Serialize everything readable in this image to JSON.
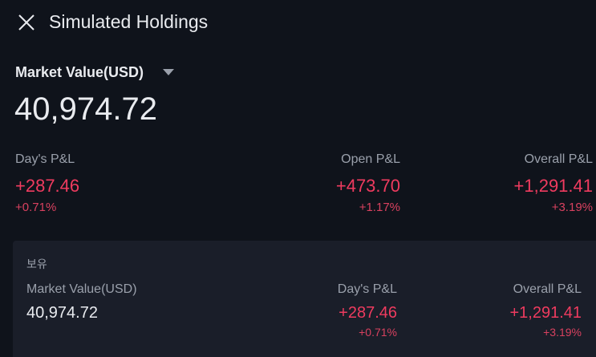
{
  "header": {
    "title": "Simulated Holdings"
  },
  "summary": {
    "label": "Market Value(USD)",
    "value": "40,974.72",
    "metrics": [
      {
        "label": "Day's P&L",
        "value": "+287.46",
        "percent": "+0.71%"
      },
      {
        "label": "Open P&L",
        "value": "+473.70",
        "percent": "+1.17%"
      },
      {
        "label": "Overall P&L",
        "value": "+1,291.41",
        "percent": "+3.19%"
      }
    ]
  },
  "holdings": {
    "section": "보유",
    "columns": [
      {
        "label": "Market Value(USD)",
        "value": "40,974.72"
      },
      {
        "label": "Day's P&L",
        "value": "+287.46",
        "percent": "+0.71%"
      },
      {
        "label": "Overall P&L",
        "value": "+1,291.41",
        "percent": "+3.19%"
      }
    ]
  }
}
